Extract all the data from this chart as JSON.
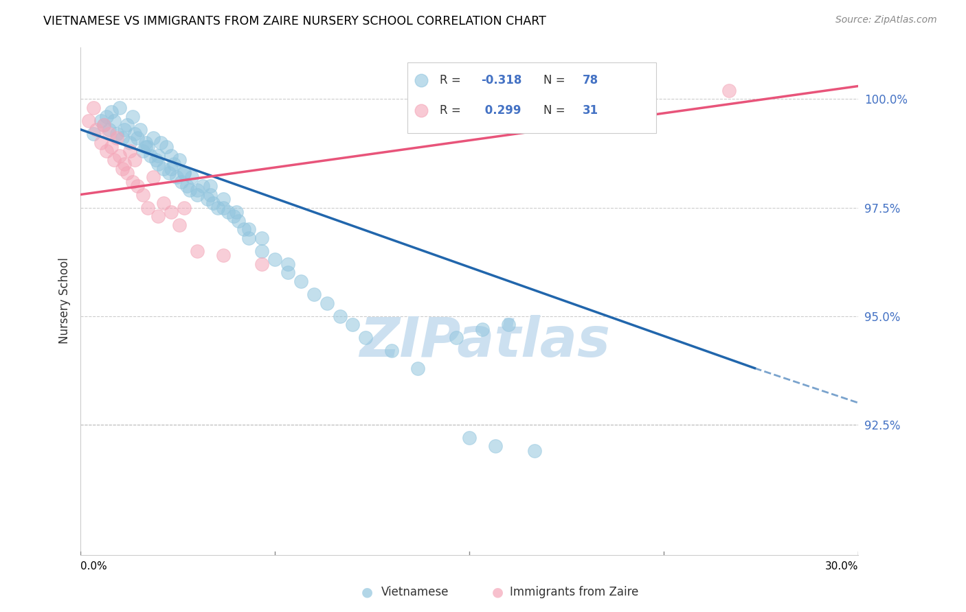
{
  "title": "VIETNAMESE VS IMMIGRANTS FROM ZAIRE NURSERY SCHOOL CORRELATION CHART",
  "source": "Source: ZipAtlas.com",
  "ylabel": "Nursery School",
  "color_blue": "#92c5de",
  "color_pink": "#f4a6b8",
  "color_blue_line": "#2166ac",
  "color_pink_line": "#e8547a",
  "color_watermark": "#cce0f0",
  "watermark_text": "ZIPatlas",
  "xmin": 0.0,
  "xmax": 30.0,
  "ymin": 89.5,
  "ymax": 101.2,
  "ytick_vals": [
    92.5,
    95.0,
    97.5,
    100.0
  ],
  "blue_scatter_x": [
    0.5,
    0.8,
    0.9,
    1.0,
    1.1,
    1.2,
    1.3,
    1.4,
    1.5,
    1.6,
    1.7,
    1.8,
    1.9,
    2.0,
    2.1,
    2.2,
    2.3,
    2.4,
    2.5,
    2.6,
    2.7,
    2.8,
    2.9,
    3.0,
    3.1,
    3.2,
    3.3,
    3.4,
    3.5,
    3.6,
    3.7,
    3.8,
    3.9,
    4.0,
    4.1,
    4.2,
    4.3,
    4.5,
    4.7,
    4.9,
    5.0,
    5.1,
    5.3,
    5.5,
    5.7,
    5.9,
    6.1,
    6.3,
    6.5,
    7.0,
    7.5,
    8.0,
    8.5,
    9.0,
    9.5,
    10.0,
    10.5,
    11.0,
    12.0,
    13.0,
    14.5,
    15.5,
    16.5,
    3.0,
    4.0,
    5.0,
    6.0,
    2.5,
    3.5,
    4.5,
    5.5,
    6.5,
    7.0,
    8.0,
    16.0,
    17.5,
    15.0
  ],
  "blue_scatter_y": [
    99.2,
    99.5,
    99.4,
    99.6,
    99.3,
    99.7,
    99.5,
    99.2,
    99.8,
    99.1,
    99.3,
    99.4,
    99.0,
    99.6,
    99.2,
    99.1,
    99.3,
    98.8,
    99.0,
    98.9,
    98.7,
    99.1,
    98.6,
    98.5,
    99.0,
    98.4,
    98.9,
    98.3,
    98.7,
    98.5,
    98.2,
    98.6,
    98.1,
    98.3,
    98.0,
    97.9,
    98.2,
    97.8,
    98.0,
    97.7,
    97.8,
    97.6,
    97.5,
    97.7,
    97.4,
    97.3,
    97.2,
    97.0,
    96.8,
    96.5,
    96.3,
    96.0,
    95.8,
    95.5,
    95.3,
    95.0,
    94.8,
    94.5,
    94.2,
    93.8,
    94.5,
    94.7,
    94.8,
    98.7,
    98.3,
    98.0,
    97.4,
    98.9,
    98.4,
    97.9,
    97.5,
    97.0,
    96.8,
    96.2,
    92.0,
    91.9,
    92.2
  ],
  "pink_scatter_x": [
    0.3,
    0.5,
    0.6,
    0.8,
    0.9,
    1.0,
    1.1,
    1.2,
    1.3,
    1.4,
    1.5,
    1.6,
    1.7,
    1.8,
    1.9,
    2.0,
    2.1,
    2.2,
    2.4,
    2.6,
    2.8,
    3.0,
    3.2,
    3.5,
    3.8,
    4.0,
    4.5,
    5.5,
    7.0,
    25.0
  ],
  "pink_scatter_y": [
    99.5,
    99.8,
    99.3,
    99.0,
    99.4,
    98.8,
    99.2,
    98.9,
    98.6,
    99.1,
    98.7,
    98.4,
    98.5,
    98.3,
    98.8,
    98.1,
    98.6,
    98.0,
    97.8,
    97.5,
    98.2,
    97.3,
    97.6,
    97.4,
    97.1,
    97.5,
    96.5,
    96.4,
    96.2,
    100.2
  ],
  "blue_line_x0": 0.0,
  "blue_line_y0": 99.3,
  "blue_line_x1": 26.0,
  "blue_line_y1": 93.8,
  "blue_line_dash_x0": 26.0,
  "blue_line_dash_y0": 93.8,
  "blue_line_dash_x1": 30.0,
  "blue_line_dash_y1": 93.0,
  "pink_line_x0": 0.0,
  "pink_line_y0": 97.8,
  "pink_line_x1": 30.0,
  "pink_line_y1": 100.3
}
